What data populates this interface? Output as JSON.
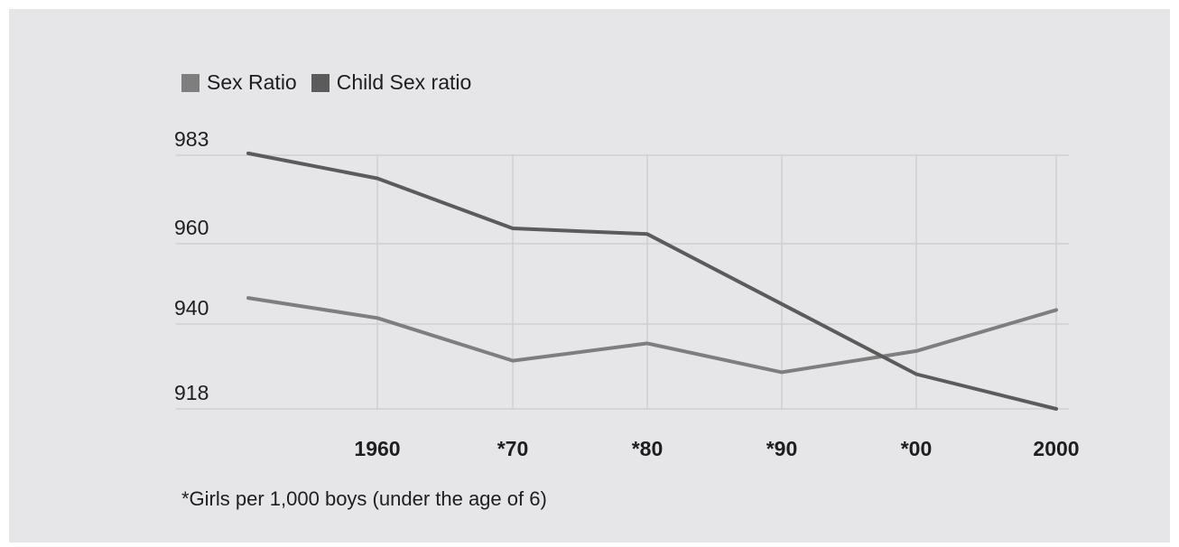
{
  "chart_data": {
    "type": "line",
    "categories": [
      "",
      "1960",
      "*70",
      "*80",
      "*90",
      "*00",
      "2000"
    ],
    "yticks": [
      983,
      960,
      940,
      918
    ],
    "ylim": [
      918,
      983
    ],
    "grid": true,
    "legend_position": "top-left",
    "series": [
      {
        "name": "Sex Ratio",
        "color": "#7e7e7e",
        "values": [
          946.5,
          941.5,
          930.5,
          935,
          927.5,
          933,
          943.5
        ]
      },
      {
        "name": "Child Sex ratio",
        "color": "#5b5b5b",
        "values": [
          983.5,
          977,
          964,
          962.5,
          945,
          927,
          918
        ]
      }
    ],
    "footnote": "*Girls per 1,000 boys (under the age of 6)"
  }
}
